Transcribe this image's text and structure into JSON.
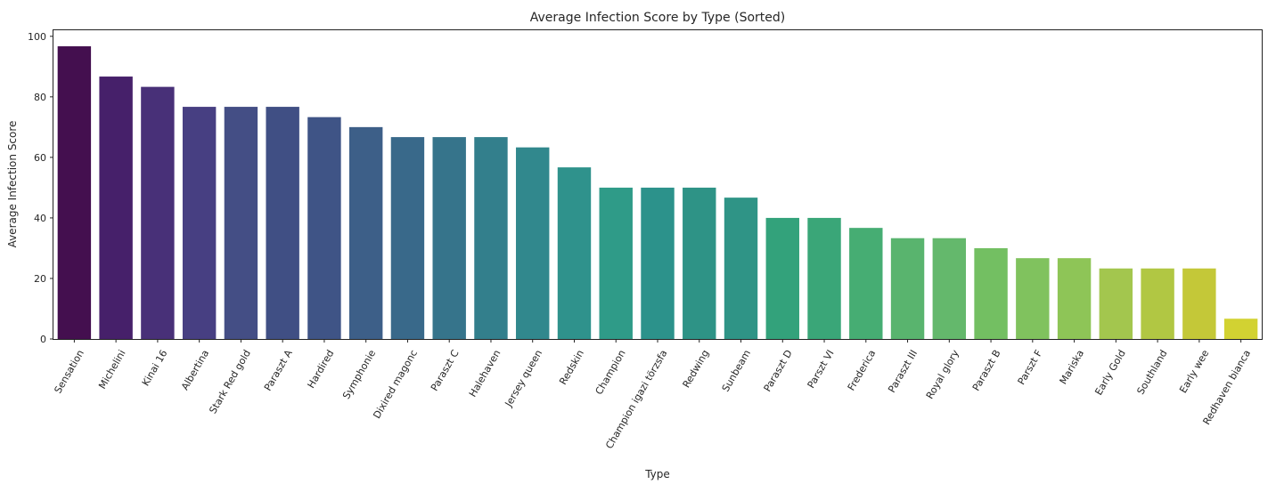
{
  "chart_data": {
    "type": "bar",
    "title": "Average Infection Score by Type (Sorted)",
    "xlabel": "Type",
    "ylabel": "Average Infection Score",
    "ylim": [
      0,
      102
    ],
    "yticks": [
      0,
      20,
      40,
      60,
      80,
      100
    ],
    "grid": false,
    "legend": "none",
    "palette": "viridis",
    "categories": [
      "Sensation",
      "Michelini",
      "Kinai 16",
      "Albertina",
      "Stark Red gold",
      "Paraszt A",
      "Hardired",
      "Symphonie",
      "Dixired magonc",
      "Paraszt C",
      "Halehaven",
      "Jersey queen",
      "Redskin",
      "Champion",
      "Champion igazi törzsfa",
      "Redwing",
      "Sunbeam",
      "Paraszt D",
      "Parszt VI",
      "Frederica",
      "Paraszt III",
      "Royal glory",
      "Paraszt B",
      "Parszt F",
      "Mariska",
      "Early Gold",
      "Southland",
      "Early wee",
      "Redhaven bianca"
    ],
    "values": [
      96.7,
      86.7,
      83.3,
      76.7,
      76.7,
      76.7,
      73.3,
      70.0,
      66.7,
      66.7,
      66.7,
      63.3,
      56.7,
      50.0,
      50.0,
      50.0,
      46.7,
      40.0,
      40.0,
      36.7,
      33.3,
      33.3,
      30.0,
      26.7,
      26.7,
      23.3,
      23.3,
      23.3,
      6.7
    ],
    "colors": [
      "#440f4f",
      "#46206a",
      "#483078",
      "#473f82",
      "#444e85",
      "#404f84",
      "#3f5486",
      "#3d5f88",
      "#39698a",
      "#36748b",
      "#337f8c",
      "#31888d",
      "#2f928c",
      "#2f9b88",
      "#2c928b",
      "#2e9386",
      "#2f9486",
      "#33a27b",
      "#3aa678",
      "#46ad73",
      "#59b46e",
      "#64b86c",
      "#73bf62",
      "#80c25e",
      "#8ec557",
      "#a3c64e",
      "#b1c743",
      "#c4c838",
      "#d2d232"
    ]
  }
}
